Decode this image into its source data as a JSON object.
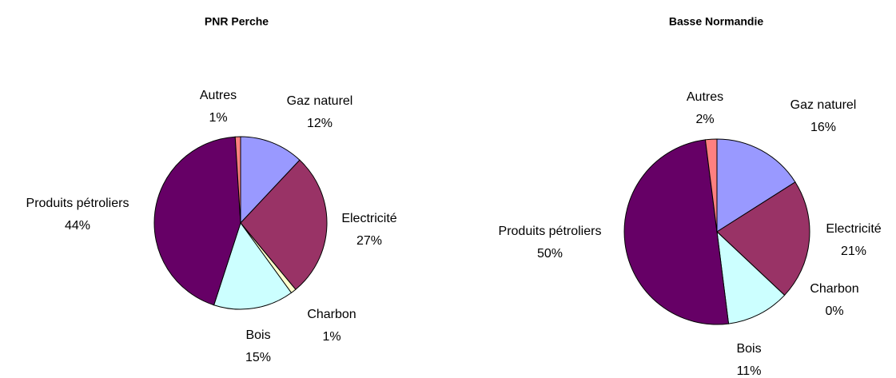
{
  "chart_data": [
    {
      "type": "pie",
      "title": "PNR Perche",
      "categories": [
        "Gaz naturel",
        "Electricité",
        "Charbon",
        "Bois",
        "Produits pétroliers",
        "Autres"
      ],
      "values": [
        12,
        27,
        1,
        15,
        44,
        1
      ],
      "value_labels": [
        "12%",
        "27%",
        "1%",
        "15%",
        "44%",
        "1%"
      ],
      "colors": [
        "#9999ff",
        "#993366",
        "#ffffcc",
        "#ccffff",
        "#660066",
        "#ff8080"
      ]
    },
    {
      "type": "pie",
      "title": "Basse Normandie",
      "categories": [
        "Gaz naturel",
        "Electricité",
        "Charbon",
        "Bois",
        "Produits pétroliers",
        "Autres"
      ],
      "values": [
        16,
        21,
        0,
        11,
        50,
        2
      ],
      "value_labels": [
        "16%",
        "21%",
        "0%",
        "11%",
        "50%",
        "2%"
      ],
      "colors": [
        "#9999ff",
        "#993366",
        "#ffffcc",
        "#ccffff",
        "#660066",
        "#ff8080"
      ]
    }
  ]
}
